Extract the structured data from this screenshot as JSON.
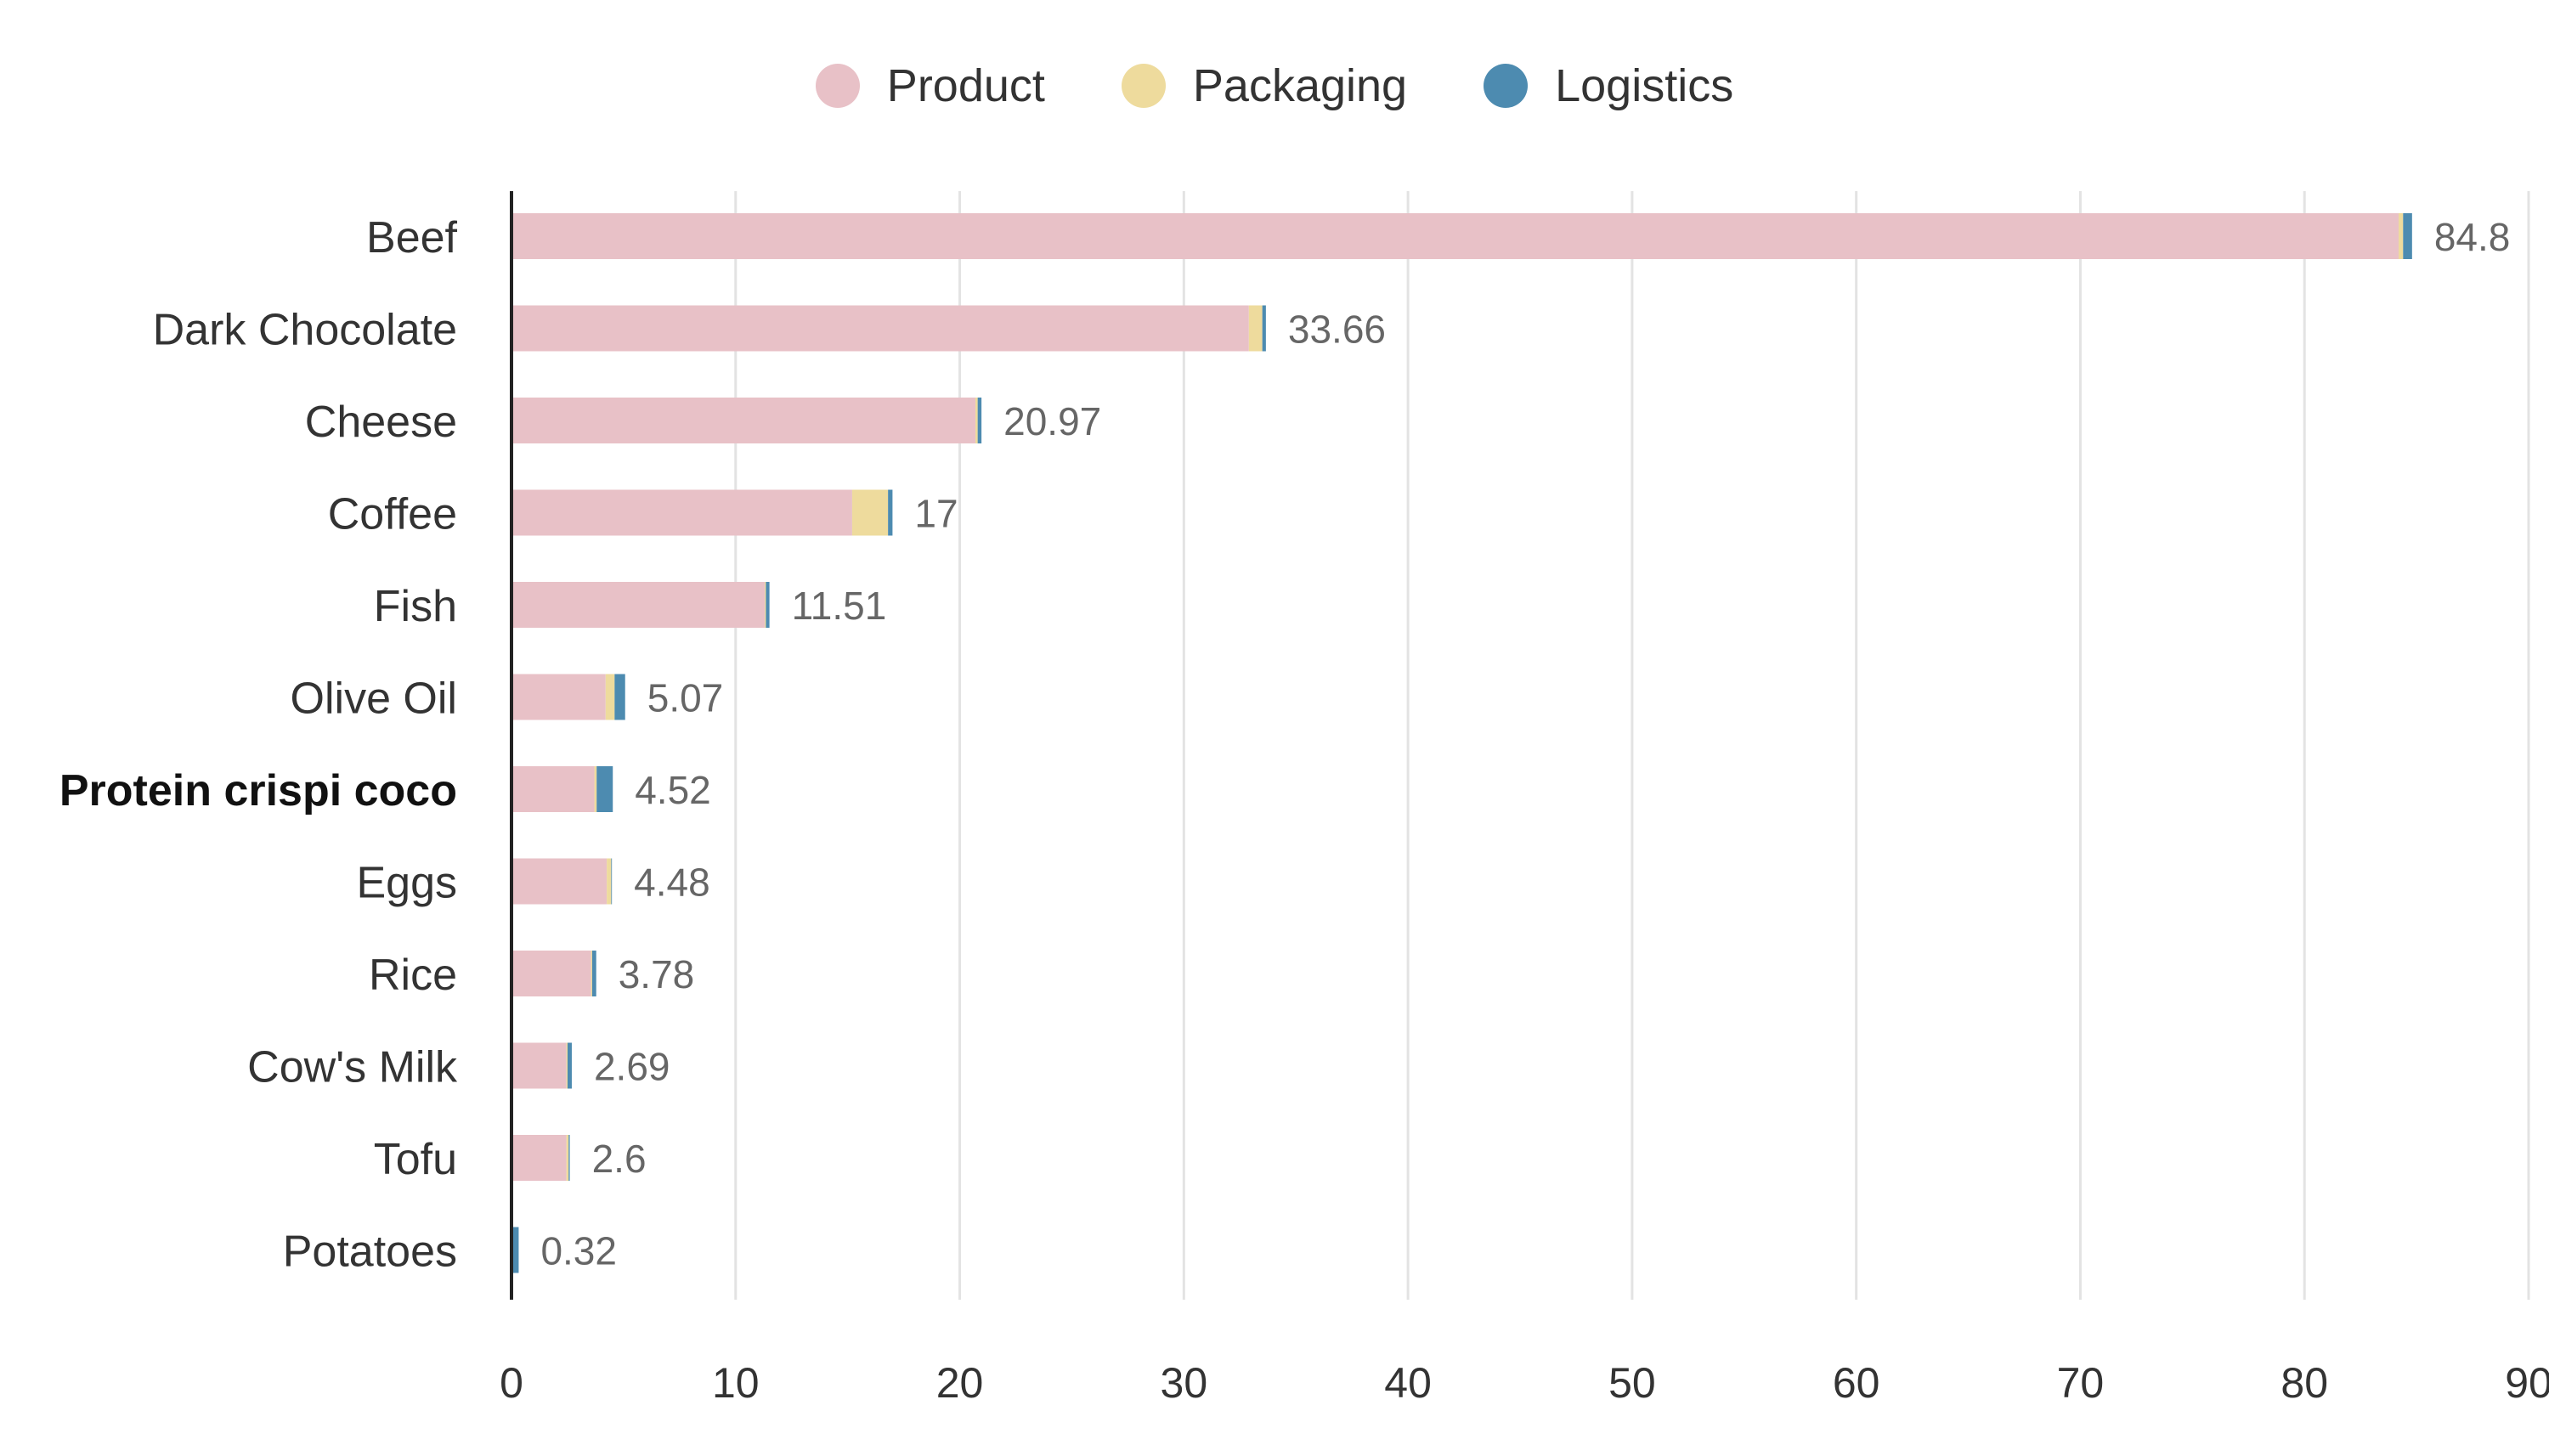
{
  "chart_data": {
    "type": "bar",
    "orientation": "horizontal",
    "stacked": true,
    "title": "",
    "xlabel": "",
    "ylabel": "",
    "xlim": [
      0,
      90
    ],
    "x_ticks": [
      0,
      10,
      20,
      30,
      40,
      50,
      60,
      70,
      80,
      90
    ],
    "grid": true,
    "legend_position": "top-center",
    "highlighted_category": "Protein crispi coco",
    "categories": [
      "Beef",
      "Dark Chocolate",
      "Cheese",
      "Coffee",
      "Fish",
      "Olive Oil",
      "Protein crispi coco",
      "Eggs",
      "Rice",
      "Cow's Milk",
      "Tofu",
      "Potatoes"
    ],
    "totals": [
      "84.8",
      "33.66",
      "20.97",
      "17",
      "11.51",
      "5.07",
      "4.52",
      "4.48",
      "3.78",
      "2.69",
      "2.6",
      "0.32"
    ],
    "series": [
      {
        "name": "Product",
        "color": "#e8c1c7",
        "values": [
          84.2,
          32.9,
          20.7,
          15.2,
          11.3,
          4.2,
          3.7,
          4.25,
          3.55,
          2.45,
          2.45,
          0.0
        ]
      },
      {
        "name": "Packaging",
        "color": "#eedb9d",
        "values": [
          0.2,
          0.6,
          0.1,
          1.6,
          0.05,
          0.4,
          0.1,
          0.2,
          0.05,
          0.05,
          0.1,
          0.0
        ]
      },
      {
        "name": "Logistics",
        "color": "#4d8bb0",
        "values": [
          0.4,
          0.16,
          0.17,
          0.2,
          0.16,
          0.47,
          0.72,
          0.03,
          0.18,
          0.19,
          0.05,
          0.32
        ]
      }
    ]
  }
}
